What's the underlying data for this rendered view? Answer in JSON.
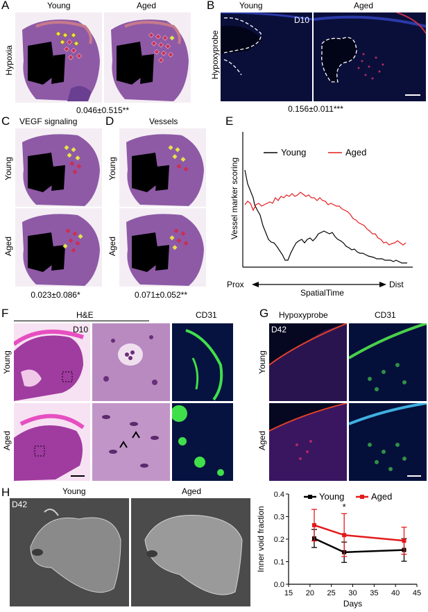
{
  "panel_letters": {
    "a": "A",
    "b": "B",
    "c": "C",
    "d": "D",
    "e": "E",
    "f": "F",
    "g": "G",
    "h": "H"
  },
  "panelA": {
    "col1": "Young",
    "col2": "Aged",
    "row": "Hypoxia",
    "stat": "0.046±0.515**"
  },
  "panelB": {
    "col1": "Young",
    "col2": "Aged",
    "row": "Hypoxyprobe",
    "day": "D10",
    "stat": "0.156±0.011***"
  },
  "panelC": {
    "title": "VEGF signaling",
    "row1": "Young",
    "row2": "Aged",
    "stat": "0.023±0.086*"
  },
  "panelD": {
    "title": "Vessels",
    "row1": "Young",
    "row2": "Aged",
    "stat": "0.071±0.052**"
  },
  "panelE": {
    "ylabel": "Vessel marker scoring",
    "x_left": "Prox",
    "x_mid": "SpatialTime",
    "x_right": "Dist",
    "legend": [
      "Young",
      "Aged"
    ],
    "colors": {
      "young": "#000000",
      "aged": "#e31a1c"
    }
  },
  "panelF": {
    "he": "H&E",
    "cd31": "CD31",
    "day": "D10",
    "row1": "Young",
    "row2": "Aged"
  },
  "panelG": {
    "hypoxy": "Hypoxyprobe",
    "cd31": "CD31",
    "day": "D42",
    "row1": "Young",
    "row2": "Aged"
  },
  "panelH": {
    "day": "D42",
    "young": "Young",
    "aged": "Aged"
  },
  "chart_data": {
    "type": "line",
    "title": "",
    "xlabel": "Days",
    "ylabel": "Inner void fraction",
    "x": [
      21,
      28,
      42
    ],
    "xlim": [
      15,
      45
    ],
    "ylim": [
      0.0,
      0.4
    ],
    "xticks": [
      "15",
      "20",
      "25",
      "30",
      "35",
      "40",
      "45"
    ],
    "yticks": [
      "0.0",
      "0.1",
      "0.2",
      "0.3",
      "0.4"
    ],
    "legend_position": "top",
    "series": [
      {
        "name": "Young",
        "values": [
          0.203,
          0.142,
          0.152
        ],
        "err": [
          0.04,
          0.045,
          0.05
        ],
        "color": "#000000"
      },
      {
        "name": "Aged",
        "values": [
          0.262,
          0.218,
          0.193
        ],
        "err": [
          0.07,
          0.095,
          0.06
        ],
        "color": "#e31a1c"
      }
    ],
    "annotations": [
      {
        "x": 28,
        "text": "*"
      }
    ]
  }
}
